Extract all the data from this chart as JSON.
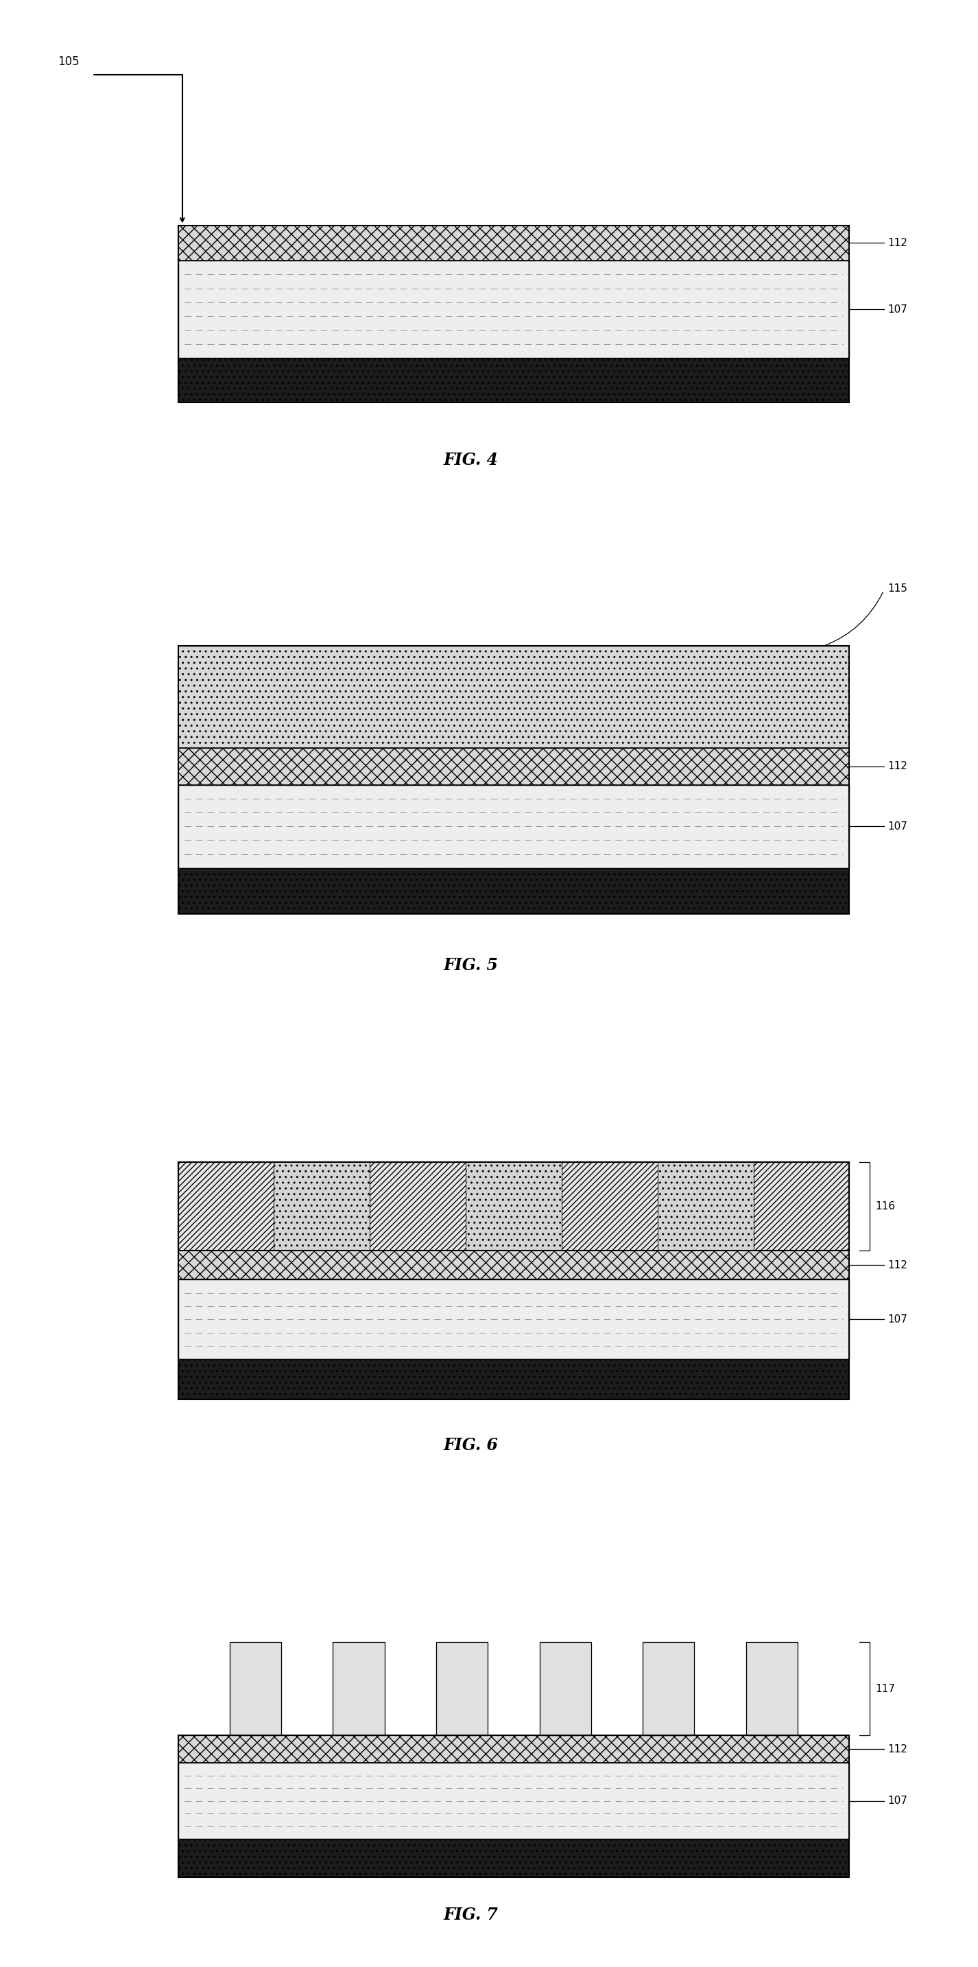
{
  "bg_color": "#ffffff",
  "fig4_label": "FIG. 4",
  "fig5_label": "FIG. 5",
  "fig6_label": "FIG. 6",
  "fig7_label": "FIG. 7",
  "label_105": "105",
  "label_112": "112",
  "label_107": "107",
  "label_115": "115",
  "label_116": "116",
  "label_117": "117",
  "dark_fc": "#1c1c1c",
  "dash_fc": "#e8e8e8",
  "cross_fc": "#d8d8d8",
  "dot_fc": "#d8d8d8",
  "pillar_fc": "#e0e0e0",
  "seg_hatch_fc": "#e8e8e8",
  "seg_dot_fc": "#d4d4d4"
}
